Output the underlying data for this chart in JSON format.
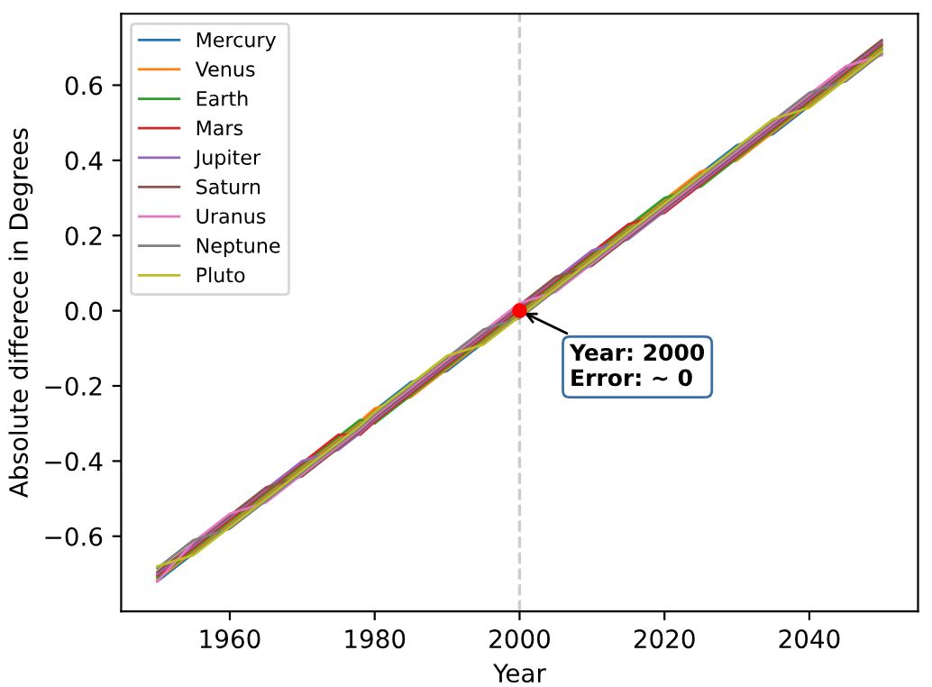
{
  "chart_data": {
    "type": "line",
    "xlabel": "Year",
    "ylabel": "Absolute differece in Degrees",
    "x": [
      1950,
      1955,
      1960,
      1965,
      1970,
      1975,
      1978,
      1980,
      1985,
      1990,
      1995,
      2000,
      2005,
      2010,
      2015,
      2020,
      2025,
      2030,
      2035,
      2040,
      2045,
      2050
    ],
    "series": [
      {
        "name": "Mercury",
        "color": "#1f77b4",
        "values": [
          -0.72,
          -0.645,
          -0.57,
          -0.495,
          -0.42,
          -0.345,
          -0.3,
          -0.265,
          -0.19,
          -0.16,
          -0.085,
          -0.01,
          0.065,
          0.14,
          0.215,
          0.29,
          0.365,
          0.44,
          0.47,
          0.545,
          0.62,
          0.695
        ]
      },
      {
        "name": "Venus",
        "color": "#ff7f0e",
        "values": [
          -0.715,
          -0.64,
          -0.565,
          -0.49,
          -0.415,
          -0.34,
          -0.295,
          -0.26,
          -0.23,
          -0.155,
          -0.08,
          -0.005,
          0.07,
          0.145,
          0.22,
          0.295,
          0.37,
          0.4,
          0.475,
          0.55,
          0.625,
          0.7
        ]
      },
      {
        "name": "Earth",
        "color": "#2ca02c",
        "values": [
          -0.71,
          -0.635,
          -0.56,
          -0.485,
          -0.41,
          -0.335,
          -0.29,
          -0.3,
          -0.225,
          -0.15,
          -0.075,
          0.0,
          0.075,
          0.15,
          0.225,
          0.3,
          0.33,
          0.405,
          0.48,
          0.555,
          0.63,
          0.705
        ]
      },
      {
        "name": "Mars",
        "color": "#d62728",
        "values": [
          -0.705,
          -0.63,
          -0.555,
          -0.48,
          -0.405,
          -0.33,
          -0.33,
          -0.295,
          -0.22,
          -0.145,
          -0.07,
          0.005,
          0.08,
          0.155,
          0.23,
          0.26,
          0.335,
          0.41,
          0.485,
          0.56,
          0.635,
          0.71
        ]
      },
      {
        "name": "Jupiter",
        "color": "#9467bd",
        "values": [
          -0.7,
          -0.625,
          -0.55,
          -0.475,
          -0.4,
          -0.37,
          -0.325,
          -0.29,
          -0.215,
          -0.14,
          -0.065,
          0.01,
          0.085,
          0.16,
          0.19,
          0.265,
          0.34,
          0.415,
          0.49,
          0.565,
          0.64,
          0.715
        ]
      },
      {
        "name": "Saturn",
        "color": "#8c564b",
        "values": [
          -0.695,
          -0.62,
          -0.545,
          -0.47,
          -0.44,
          -0.365,
          -0.32,
          -0.285,
          -0.21,
          -0.135,
          -0.06,
          0.015,
          0.09,
          0.12,
          0.195,
          0.27,
          0.345,
          0.42,
          0.495,
          0.57,
          0.645,
          0.72
        ]
      },
      {
        "name": "Uranus",
        "color": "#e377c2",
        "values": [
          -0.72,
          -0.615,
          -0.54,
          -0.51,
          -0.435,
          -0.36,
          -0.315,
          -0.28,
          -0.205,
          -0.13,
          -0.055,
          0.02,
          0.05,
          0.125,
          0.2,
          0.275,
          0.35,
          0.425,
          0.5,
          0.575,
          0.65,
          0.68
        ]
      },
      {
        "name": "Neptune",
        "color": "#7f7f7f",
        "values": [
          -0.685,
          -0.61,
          -0.58,
          -0.505,
          -0.43,
          -0.355,
          -0.31,
          -0.275,
          -0.2,
          -0.125,
          -0.05,
          -0.02,
          0.055,
          0.13,
          0.205,
          0.28,
          0.355,
          0.43,
          0.505,
          0.58,
          0.61,
          0.685
        ]
      },
      {
        "name": "Pluto",
        "color": "#bcbd22",
        "values": [
          -0.68,
          -0.65,
          -0.575,
          -0.5,
          -0.425,
          -0.35,
          -0.305,
          -0.27,
          -0.195,
          -0.12,
          -0.09,
          -0.015,
          0.06,
          0.135,
          0.21,
          0.285,
          0.36,
          0.435,
          0.51,
          0.54,
          0.615,
          0.69
        ]
      },
      {
        "type": "scatter",
        "color": "#ff0000",
        "x": [
          2000
        ],
        "values": [
          0.0
        ]
      }
    ],
    "xlim": [
      1945,
      2055
    ],
    "ylim": [
      -0.8,
      0.79
    ],
    "xticks": [
      1960,
      1980,
      2000,
      2020,
      2040
    ],
    "yticks": [
      {
        "value": -0.6,
        "label": "−0.6"
      },
      {
        "value": -0.4,
        "label": "−0.4"
      },
      {
        "value": -0.2,
        "label": "−0.2"
      },
      {
        "value": 0,
        "label": "0.0"
      },
      0.2,
      0.4,
      0.6
    ],
    "ref_lines": [
      {
        "axis": "x",
        "value": 2000,
        "color": "#cccccc",
        "line_style": "dashed"
      }
    ],
    "annotations": [
      {
        "text": "Year: 2000\nError: ~ 0",
        "x": 2000,
        "y": 0.0
      }
    ],
    "legend": "top left",
    "grid": false
  }
}
